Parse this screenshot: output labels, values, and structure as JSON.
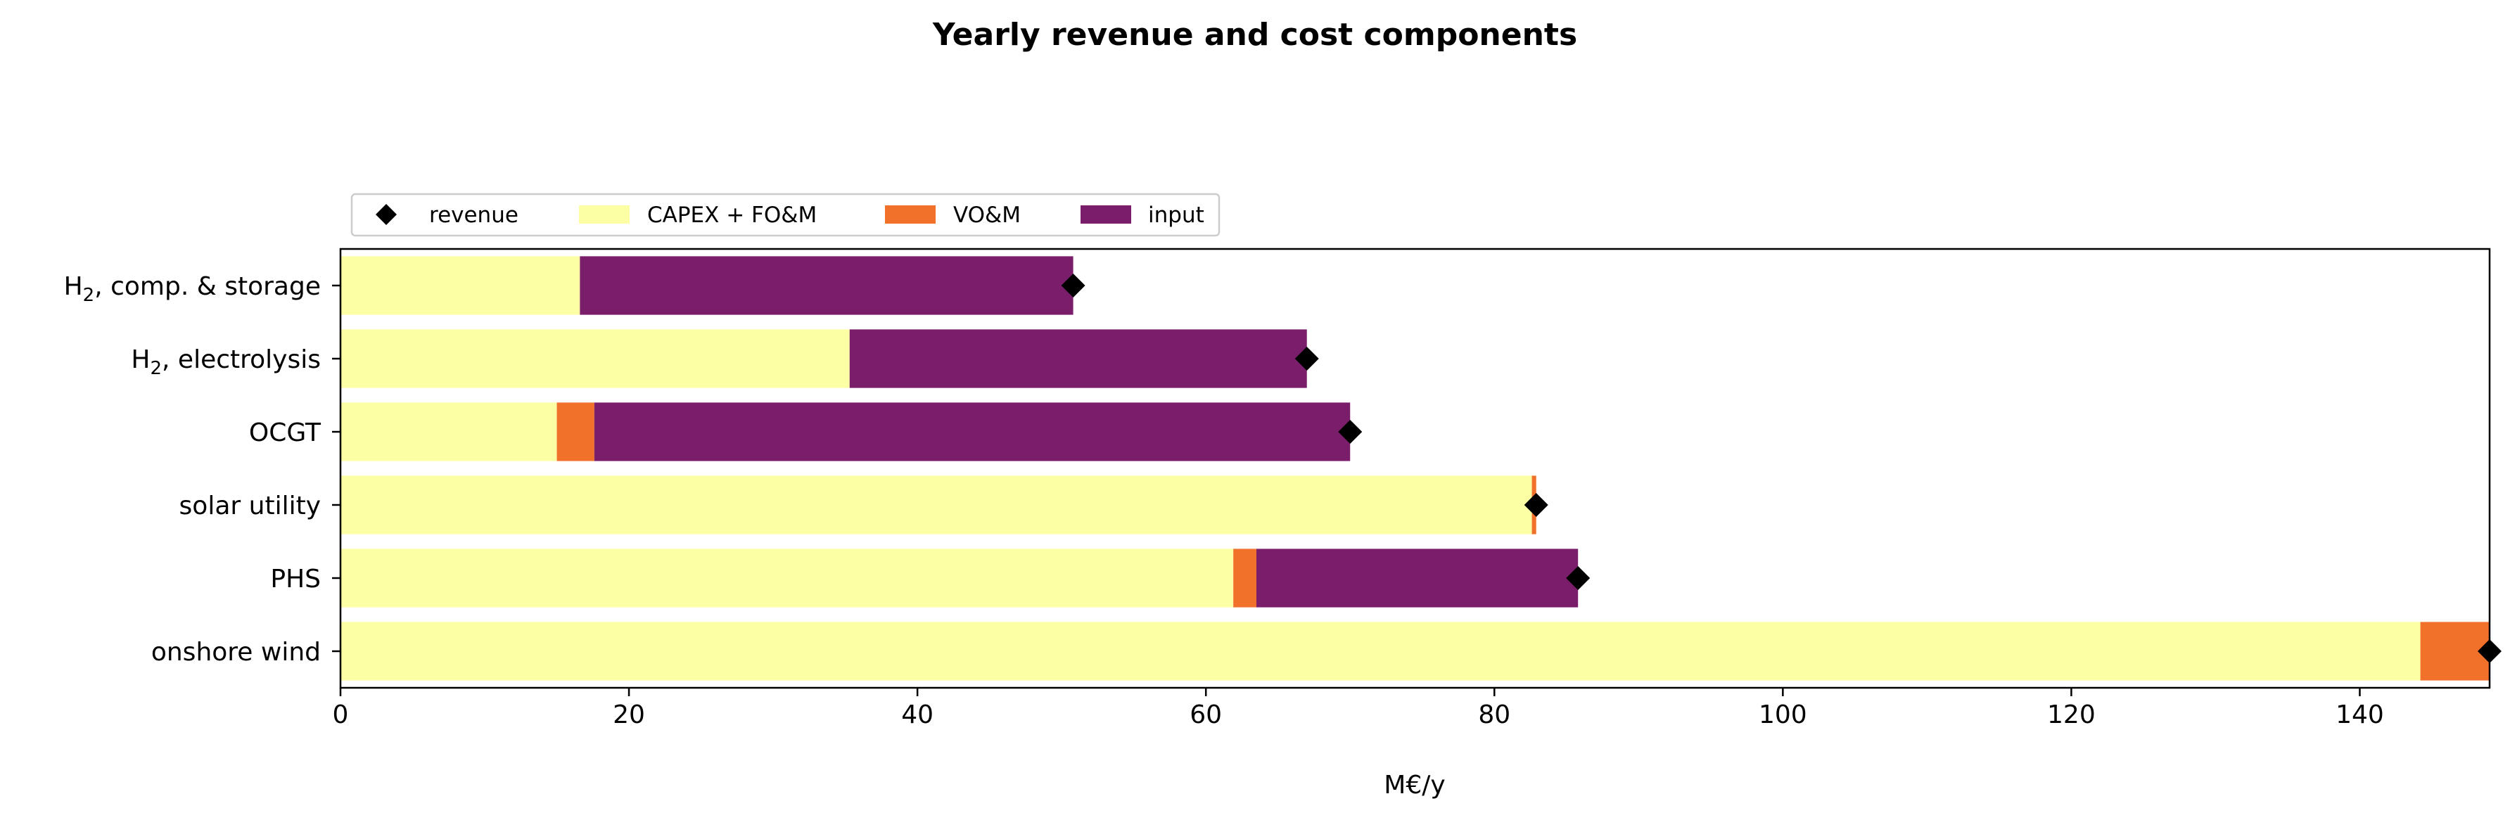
{
  "chart_data": {
    "type": "bar",
    "orientation": "horizontal",
    "stacked": true,
    "title": "Yearly revenue and cost components",
    "xlabel": "M€/y",
    "ylabel": "",
    "xlim": [
      0,
      149
    ],
    "xticks": [
      0,
      20,
      40,
      60,
      80,
      100,
      120,
      140
    ],
    "grid": false,
    "legend_position": "top-left",
    "categories": [
      {
        "main": "H",
        "sub": "2",
        "rest": ", comp. & storage"
      },
      {
        "main": "H",
        "sub": "2",
        "rest": ", electrolysis"
      },
      {
        "main": "OCGT",
        "sub": "",
        "rest": ""
      },
      {
        "main": "solar utility",
        "sub": "",
        "rest": ""
      },
      {
        "main": "PHS",
        "sub": "",
        "rest": ""
      },
      {
        "main": "onshore wind",
        "sub": "",
        "rest": ""
      }
    ],
    "series": [
      {
        "name": "CAPEX + FO&M",
        "color": "#fcffa4",
        "values": [
          16.6,
          35.3,
          15.0,
          82.6,
          61.9,
          144.2
        ]
      },
      {
        "name": "VO&M",
        "color": "#f1712b",
        "values": [
          0.0,
          0.0,
          2.6,
          0.3,
          1.6,
          4.8
        ]
      },
      {
        "name": "input",
        "color": "#7a1d6b",
        "values": [
          34.2,
          31.7,
          52.4,
          0.0,
          22.3,
          0.0
        ]
      }
    ],
    "markers": {
      "name": "revenue",
      "color": "#000000",
      "shape": "diamond",
      "values": [
        50.8,
        67.0,
        70.0,
        82.9,
        85.8,
        149.0
      ]
    }
  }
}
